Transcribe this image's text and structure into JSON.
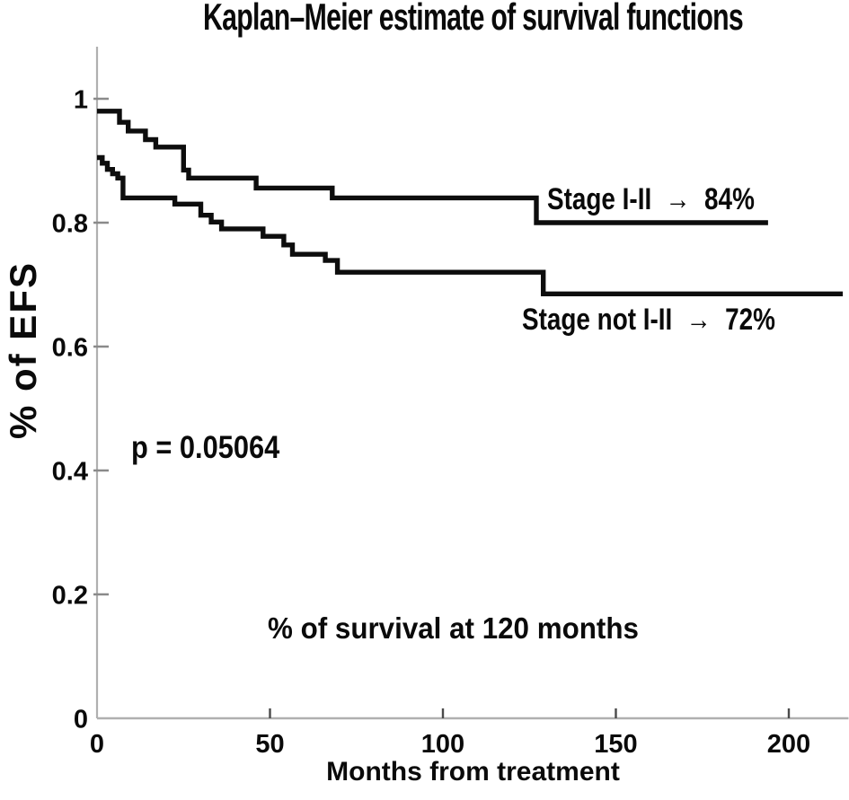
{
  "figure": {
    "title": "Kaplan–Meier estimate of survival functions",
    "x_axis_label": "Months from treatment",
    "y_axis_label": "% of EFS",
    "p_value_text": "p = 0.05064",
    "note_text": "% of survival at 120 months",
    "series_labels": {
      "stage_1_2": "Stage I-II  →  84%",
      "stage_not_1_2": "Stage not I-II  →  72%"
    }
  },
  "colors": {
    "background": "#ffffff",
    "curve": "#0d0d0d",
    "axis_line": "#b0b0b0",
    "y_tick": "#8a8a8a",
    "x_tick": "#4a4a4a",
    "text": "#0a0a0a"
  },
  "chart_data": {
    "type": "line",
    "subtype": "kaplan-meier-step",
    "title": "Kaplan–Meier estimate of survival functions",
    "xlabel": "Months from treatment",
    "ylabel": "% of EFS",
    "xlim": [
      0,
      217
    ],
    "ylim": [
      0,
      1.08
    ],
    "x_ticks": [
      0,
      50,
      100,
      150,
      200
    ],
    "x_tick_labels": [
      "0",
      "50",
      "100",
      "150",
      "200"
    ],
    "y_ticks": [
      1,
      0.8,
      0.6,
      0.4,
      0.2,
      0
    ],
    "y_tick_labels": [
      "1",
      "0.8",
      "0.6",
      "0.4",
      "0.2",
      "0"
    ],
    "grid": false,
    "legend_position": "inline-annotations",
    "p_value": 0.05064,
    "annotation_note": "% of survival at 120 months",
    "series": [
      {
        "name": "Stage I-II",
        "survival_at_120_months": 0.84,
        "label": "Stage I-II → 84%",
        "end_month": 194,
        "steps": [
          [
            0,
            0.98
          ],
          [
            6.5,
            0.962
          ],
          [
            9,
            0.948
          ],
          [
            14,
            0.934
          ],
          [
            17,
            0.922
          ],
          [
            25,
            0.885
          ],
          [
            26.5,
            0.872
          ],
          [
            46,
            0.856
          ],
          [
            68,
            0.84
          ],
          [
            127,
            0.8
          ]
        ]
      },
      {
        "name": "Stage not I-II",
        "survival_at_120_months": 0.72,
        "label": "Stage not I-II → 72%",
        "end_month": 215.6,
        "steps": [
          [
            0,
            0.905
          ],
          [
            1.5,
            0.896
          ],
          [
            3,
            0.886
          ],
          [
            4.5,
            0.879
          ],
          [
            6,
            0.872
          ],
          [
            7.5,
            0.84
          ],
          [
            22.5,
            0.83
          ],
          [
            30,
            0.812
          ],
          [
            33,
            0.801
          ],
          [
            36,
            0.79
          ],
          [
            48,
            0.778
          ],
          [
            54,
            0.764
          ],
          [
            56.5,
            0.749
          ],
          [
            66,
            0.739
          ],
          [
            69.5,
            0.72
          ],
          [
            129,
            0.685
          ]
        ]
      }
    ]
  }
}
